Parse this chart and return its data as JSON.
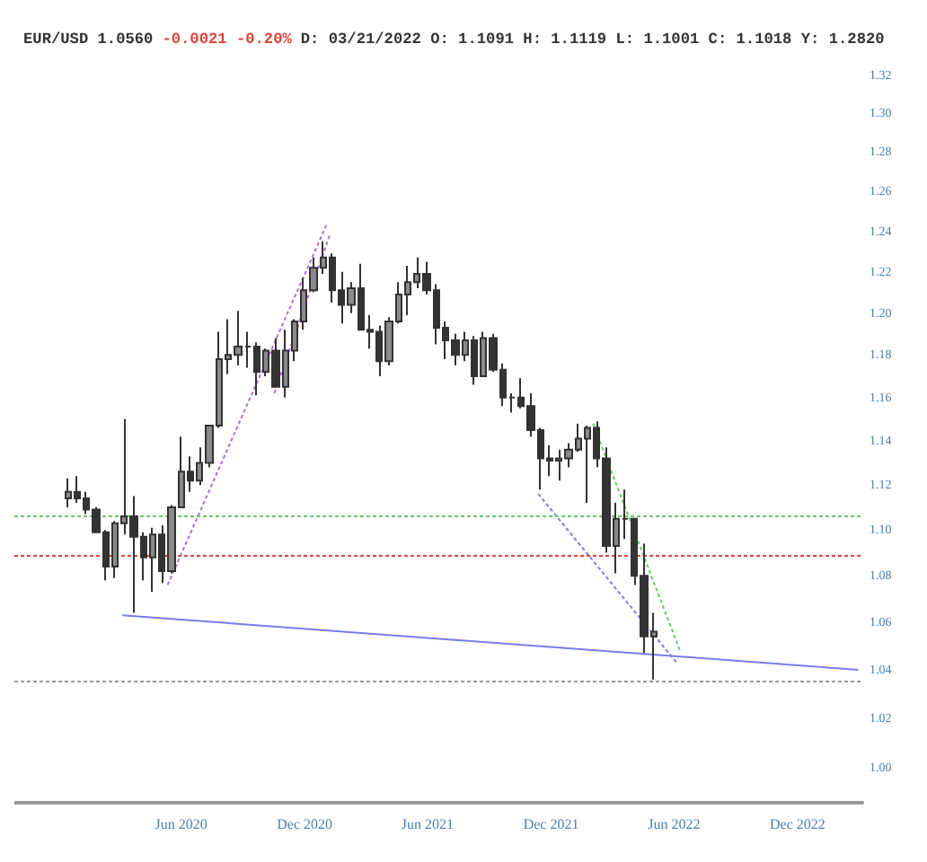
{
  "chart_data": {
    "type": "candlestick",
    "title": "EUR/USD 1.0560",
    "annotations": [
      "-0.0021 -0.20%",
      "D: 03/21/2022 O: 1.1091 H: 1.1119 L: 1.1001 C: 1.1018 Y: 1.2820"
    ],
    "color": "#333333",
    "log": true,
    "xlim": [
      "2019-09-28",
      "2023-03-07"
    ],
    "xticks": [
      {
        "value": "2020-06-01",
        "label": "Jun 2020"
      },
      {
        "value": "2020-12-01",
        "label": "Dec 2020"
      },
      {
        "value": "2021-06-01",
        "label": "Jun 2021"
      },
      {
        "value": "2021-12-01",
        "label": "Dec 2021"
      },
      {
        "value": "2022-06-01",
        "label": "Jun 2022"
      },
      {
        "value": "2022-12-01",
        "label": "Dec 2022"
      }
    ],
    "ylim": [
      0.986,
      1.32
    ],
    "yticks": [
      {
        "value": 1.0,
        "label": "1.00"
      },
      1.02,
      1.04,
      1.06,
      1.08,
      {
        "value": 1.1,
        "label": "1.10"
      },
      1.12,
      1.14,
      1.16,
      1.18,
      {
        "value": 1.2,
        "label": "1.20"
      },
      1.22,
      1.24,
      1.26,
      1.28,
      {
        "value": 1.3,
        "label": "1.30"
      },
      1.32
    ],
    "x": [
      "2019-12-16",
      "2019-12-30",
      "2020-01-13",
      "2020-01-27",
      "2020-02-10",
      "2020-02-24",
      "2020-03-09",
      "2020-03-23",
      "2020-04-06",
      "2020-04-20",
      "2020-05-04",
      "2020-05-18",
      "2020-06-01",
      "2020-06-15",
      "2020-06-29",
      "2020-07-13",
      "2020-07-27",
      "2020-08-10",
      "2020-08-24",
      "2020-09-07",
      "2020-09-21",
      "2020-10-05",
      "2020-10-19",
      "2020-11-02",
      "2020-11-16",
      "2020-11-30",
      "2020-12-14",
      "2020-12-28",
      "2021-01-11",
      "2021-01-25",
      "2021-02-08",
      "2021-02-22",
      "2021-03-08",
      "2021-03-22",
      "2021-04-05",
      "2021-04-19",
      "2021-05-03",
      "2021-05-17",
      "2021-05-31",
      "2021-06-14",
      "2021-06-28",
      "2021-07-12",
      "2021-07-26",
      "2021-08-09",
      "2021-08-23",
      "2021-09-06",
      "2021-09-20",
      "2021-10-04",
      "2021-10-18",
      "2021-11-01",
      "2021-11-15",
      "2021-11-29",
      "2021-12-13",
      "2021-12-27",
      "2022-01-10",
      "2022-01-24",
      "2022-02-07",
      "2022-02-21",
      "2022-03-07",
      "2022-03-21",
      "2022-04-04",
      "2022-04-18",
      "2022-05-02"
    ],
    "ohlc": [
      [
        1.114,
        1.123,
        1.11,
        1.117
      ],
      [
        1.117,
        1.124,
        1.112,
        1.114
      ],
      [
        1.114,
        1.117,
        1.107,
        1.109
      ],
      [
        1.109,
        1.11,
        1.099,
        1.099
      ],
      [
        1.099,
        1.1,
        1.078,
        1.084
      ],
      [
        1.084,
        1.104,
        1.079,
        1.103
      ],
      [
        1.103,
        1.15,
        1.098,
        1.106
      ],
      [
        1.106,
        1.115,
        1.064,
        1.097
      ],
      [
        1.097,
        1.099,
        1.078,
        1.088
      ],
      [
        1.088,
        1.101,
        1.073,
        1.098
      ],
      [
        1.098,
        1.102,
        1.077,
        1.082
      ],
      [
        1.082,
        1.111,
        1.081,
        1.11
      ],
      [
        1.11,
        1.142,
        1.11,
        1.126
      ],
      [
        1.126,
        1.133,
        1.117,
        1.122
      ],
      [
        1.122,
        1.137,
        1.12,
        1.13
      ],
      [
        1.13,
        1.147,
        1.128,
        1.147
      ],
      [
        1.147,
        1.191,
        1.146,
        1.178
      ],
      [
        1.178,
        1.197,
        1.171,
        1.18
      ],
      [
        1.18,
        1.201,
        1.175,
        1.184
      ],
      [
        1.184,
        1.191,
        1.174,
        1.184
      ],
      [
        1.184,
        1.186,
        1.161,
        1.172
      ],
      [
        1.172,
        1.183,
        1.17,
        1.182
      ],
      [
        1.182,
        1.188,
        1.165,
        1.165
      ],
      [
        1.165,
        1.192,
        1.16,
        1.182
      ],
      [
        1.182,
        1.197,
        1.177,
        1.196
      ],
      [
        1.196,
        1.217,
        1.192,
        1.211
      ],
      [
        1.211,
        1.227,
        1.21,
        1.222
      ],
      [
        1.222,
        1.235,
        1.219,
        1.227
      ],
      [
        1.227,
        1.229,
        1.205,
        1.211
      ],
      [
        1.211,
        1.22,
        1.195,
        1.204
      ],
      [
        1.204,
        1.215,
        1.2,
        1.212
      ],
      [
        1.212,
        1.224,
        1.192,
        1.192
      ],
      [
        1.192,
        1.199,
        1.183,
        1.191
      ],
      [
        1.191,
        1.194,
        1.17,
        1.177
      ],
      [
        1.177,
        1.198,
        1.175,
        1.196
      ],
      [
        1.196,
        1.215,
        1.195,
        1.209
      ],
      [
        1.209,
        1.223,
        1.199,
        1.215
      ],
      [
        1.215,
        1.227,
        1.212,
        1.219
      ],
      [
        1.219,
        1.225,
        1.209,
        1.211
      ],
      [
        1.211,
        1.214,
        1.185,
        1.193
      ],
      [
        1.193,
        1.196,
        1.178,
        1.187
      ],
      [
        1.187,
        1.19,
        1.175,
        1.18
      ],
      [
        1.18,
        1.191,
        1.177,
        1.187
      ],
      [
        1.187,
        1.189,
        1.166,
        1.17
      ],
      [
        1.17,
        1.191,
        1.17,
        1.188
      ],
      [
        1.188,
        1.19,
        1.172,
        1.173
      ],
      [
        1.173,
        1.176,
        1.156,
        1.16
      ],
      [
        1.16,
        1.162,
        1.153,
        1.16
      ],
      [
        1.16,
        1.169,
        1.155,
        1.156
      ],
      [
        1.156,
        1.162,
        1.142,
        1.145
      ],
      [
        1.145,
        1.146,
        1.118,
        1.132
      ],
      [
        1.132,
        1.138,
        1.124,
        1.131
      ],
      [
        1.131,
        1.136,
        1.122,
        1.132
      ],
      [
        1.132,
        1.139,
        1.128,
        1.136
      ],
      [
        1.136,
        1.148,
        1.135,
        1.141
      ],
      [
        1.141,
        1.147,
        1.112,
        1.146
      ],
      [
        1.146,
        1.149,
        1.128,
        1.132
      ],
      [
        1.132,
        1.137,
        1.09,
        1.093
      ],
      [
        1.093,
        1.112,
        1.081,
        1.105
      ],
      [
        1.105,
        1.118,
        1.096,
        1.105
      ],
      [
        1.105,
        1.105,
        1.076,
        1.08
      ],
      [
        1.08,
        1.094,
        1.047,
        1.054
      ],
      [
        1.054,
        1.064,
        1.036,
        1.056
      ]
    ],
    "series": [
      {
        "type": "line",
        "x": [
          "2020-03-06",
          "2023-03-01"
        ],
        "values": [
          1.063,
          1.04
        ],
        "color": "#7b7bea",
        "line_style": "solid"
      },
      {
        "type": "line",
        "x": [
          "2020-05-12",
          "2021-01-02"
        ],
        "values": [
          1.076,
          1.243
        ],
        "color": "#b070d8",
        "line_style": "dotted"
      },
      {
        "type": "line",
        "x": [
          "2020-10-17",
          "2021-01-07"
        ],
        "values": [
          1.162,
          1.238
        ],
        "color": "#b070d8",
        "line_style": "dotted"
      },
      {
        "type": "line",
        "x": [
          "2021-11-12",
          "2022-06-05"
        ],
        "values": [
          1.116,
          1.043
        ],
        "color": "#7b7bea",
        "line_style": "dotted"
      },
      {
        "type": "line",
        "x": [
          "2022-02-01",
          "2022-06-10"
        ],
        "values": [
          1.148,
          1.048
        ],
        "color": "#66cc66",
        "line_style": "dotted"
      }
    ],
    "ref_lines": [
      {
        "axis": "y",
        "value": 1.106,
        "color": "#66cc66",
        "line_style": "dotted"
      },
      {
        "axis": "y",
        "value": 1.089,
        "color": "#e0453a",
        "line_style": "dotted"
      },
      {
        "axis": "y",
        "value": 1.0355,
        "color": "#999999",
        "line_style": "dotted"
      }
    ]
  }
}
